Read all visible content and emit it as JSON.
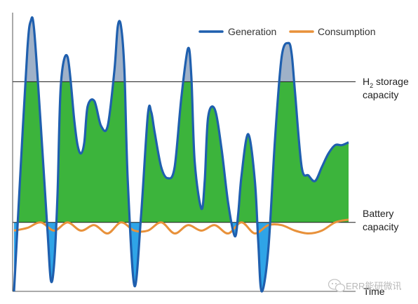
{
  "chart_data": {
    "type": "line",
    "title": "",
    "xlabel": "Time",
    "ylabel": "",
    "ylim": [
      0,
      100
    ],
    "grid": false,
    "legend_position": "top-right",
    "reference_lines": [
      {
        "name": "h2_storage",
        "label_line1": "H",
        "label_sub": "2",
        "label_line1_rest": " storage",
        "label_line2": "capacity",
        "value": 76
      },
      {
        "name": "battery",
        "label_line1": "Battery",
        "label_line2": "capacity",
        "value": 25
      }
    ],
    "series": [
      {
        "name": "Generation",
        "color": "#1f5fae",
        "x": [
          0,
          2,
          4,
          5,
          6,
          8,
          10,
          11,
          12,
          13,
          14,
          16,
          18,
          19,
          20,
          21,
          22,
          24,
          26,
          28,
          30,
          31,
          32,
          33,
          34,
          36,
          38,
          40,
          41,
          42,
          44,
          46,
          48,
          50,
          52,
          53,
          54,
          56,
          57,
          58,
          60,
          62,
          64,
          66,
          67,
          68,
          70,
          72,
          73,
          74,
          76,
          78,
          80,
          82,
          83,
          84,
          86,
          88,
          90,
          92,
          94,
          96,
          98,
          100
        ],
        "values": [
          0,
          45,
          88,
          98,
          95,
          60,
          22,
          4,
          10,
          35,
          75,
          85,
          62,
          53,
          50,
          54,
          67,
          69,
          60,
          60,
          80,
          96,
          96,
          80,
          40,
          2,
          28,
          64,
          65,
          58,
          45,
          41,
          45,
          70,
          88,
          78,
          47,
          30,
          40,
          63,
          66,
          52,
          32,
          20,
          28,
          42,
          57,
          40,
          18,
          0,
          15,
          55,
          85,
          90,
          86,
          72,
          45,
          42,
          40,
          45,
          50,
          53,
          53,
          54
        ],
        "note": "Generation curve; storage range values shown above 76 and below 25 per y-scale"
      },
      {
        "name": "Consumption",
        "color": "#e8913a",
        "x": [
          0,
          4,
          8,
          12,
          16,
          20,
          24,
          28,
          32,
          36,
          40,
          44,
          48,
          52,
          56,
          60,
          64,
          68,
          72,
          76,
          80,
          84,
          88,
          92,
          96,
          100
        ],
        "values": [
          22,
          23,
          25,
          22,
          25,
          22,
          24,
          21,
          25,
          22,
          22,
          25,
          21,
          24,
          22,
          24,
          21,
          25,
          21,
          24,
          24,
          22,
          21,
          22,
          25,
          26
        ]
      }
    ]
  },
  "legend": {
    "generation_label": "Generation",
    "consumption_label": "Consumption"
  },
  "watermark": {
    "text": "ERR能研微讯"
  },
  "colors": {
    "generation_line": "#1f5fae",
    "consumption_line": "#e8913a",
    "fill_below_battery": "#2fa4e7",
    "fill_mid": "#3cb43c",
    "fill_above_h2": "#9fb1c8",
    "axis": "#555555",
    "ref_line": "#1a1a1a"
  }
}
